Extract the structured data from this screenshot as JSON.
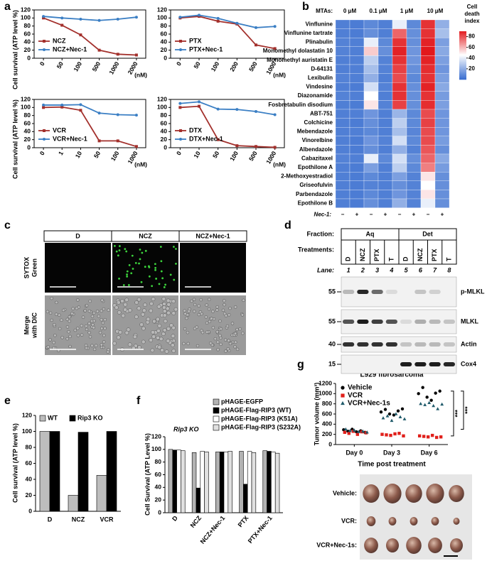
{
  "panel_labels": [
    "a",
    "b",
    "c",
    "d",
    "e",
    "f",
    "g"
  ],
  "chart_data": [
    {
      "type": "line",
      "categories": [
        "0",
        "50",
        "100",
        "500",
        "1000",
        "2000"
      ],
      "x_label": "(nM)",
      "y_label": "Cell survival (ATP level %)",
      "ylim": [
        0,
        120
      ],
      "yticks": [
        0,
        20,
        40,
        60,
        80,
        100,
        120
      ],
      "legend": "lower-left",
      "series": [
        {
          "name": "NCZ",
          "color": "#a3302c",
          "values": [
            100,
            82,
            58,
            20,
            10,
            8
          ]
        },
        {
          "name": "NCZ+Nec-1",
          "color": "#3b7fc4",
          "values": [
            104,
            100,
            97,
            94,
            97,
            102
          ]
        }
      ]
    },
    {
      "type": "line",
      "categories": [
        "0",
        "50",
        "100",
        "200",
        "500",
        "1000"
      ],
      "x_label": "(nM)",
      "ylim": [
        0,
        120
      ],
      "yticks": [
        0,
        20,
        40,
        60,
        80,
        100,
        120
      ],
      "legend": "lower-left",
      "series": [
        {
          "name": "PTX",
          "color": "#a3302c",
          "values": [
            100,
            104,
            92,
            85,
            33,
            24
          ]
        },
        {
          "name": "PTX+Nec-1",
          "color": "#3b7fc4",
          "values": [
            102,
            107,
            99,
            87,
            76,
            79
          ]
        }
      ]
    },
    {
      "type": "line",
      "categories": [
        "0",
        "1",
        "10",
        "50",
        "100",
        "1000"
      ],
      "x_label": "(nM)",
      "y_label": "Cell survival (ATP level %)",
      "ylim": [
        0,
        120
      ],
      "yticks": [
        0,
        20,
        40,
        60,
        80,
        100,
        120
      ],
      "legend": "lower-left",
      "series": [
        {
          "name": "VCR",
          "color": "#a3302c",
          "values": [
            100,
            101,
            93,
            17,
            17,
            3
          ]
        },
        {
          "name": "VCR+Nec-1",
          "color": "#3b7fc4",
          "values": [
            106,
            106,
            107,
            86,
            82,
            81
          ]
        }
      ]
    },
    {
      "type": "line",
      "categories": [
        "0",
        "10",
        "50",
        "100",
        "500",
        "1000"
      ],
      "x_label": "(nM)",
      "ylim": [
        0,
        120
      ],
      "yticks": [
        0,
        20,
        40,
        60,
        80,
        100,
        120
      ],
      "legend": "lower-left",
      "series": [
        {
          "name": "DTX",
          "color": "#a3302c",
          "values": [
            100,
            103,
            20,
            5,
            3,
            1
          ]
        },
        {
          "name": "DTX+Nec-1",
          "color": "#3b7fc4",
          "values": [
            110,
            114,
            96,
            95,
            90,
            82
          ]
        }
      ]
    },
    {
      "type": "bar",
      "categories": [
        "D",
        "NCZ",
        "VCR"
      ],
      "y_label": "Cell survival (ATP level %)",
      "ylim": [
        0,
        120
      ],
      "yticks": [
        0,
        20,
        40,
        60,
        80,
        100,
        120
      ],
      "legend": "top",
      "series": [
        {
          "name": "WT",
          "color": "#bdbdbd",
          "values": [
            100,
            20,
            45
          ]
        },
        {
          "name": "Rip3 KO",
          "color": "#000000",
          "values": [
            100,
            99,
            100
          ]
        }
      ]
    },
    {
      "type": "bar",
      "subtitle": "Rip3 KO",
      "categories": [
        "D",
        "NCZ",
        "NCZ+Nec-1",
        "PTX",
        "PTX+Nec-1"
      ],
      "y_label": "Cell Survival (ATP Level %)",
      "ylim": [
        0,
        120
      ],
      "yticks": [
        0,
        20,
        40,
        60,
        80,
        100,
        120
      ],
      "legend": "above",
      "series": [
        {
          "name": "pHAGE-EGFP",
          "color": "#b3b3b3",
          "values": [
            100,
            95,
            96,
            97,
            98
          ]
        },
        {
          "name": "pHAGE-Flag-RIP3 (WT)",
          "color": "#000000",
          "values": [
            99,
            39,
            96,
            45,
            97
          ]
        },
        {
          "name": "pHAGE-Flag-RIP3 (K51A)",
          "color": "#ffffff",
          "values": [
            99,
            97,
            96,
            97,
            96
          ]
        },
        {
          "name": "pHAGE-Flag-RIP3 (S232A)",
          "color": "#e0e0e0",
          "values": [
            98,
            96,
            97,
            95,
            94
          ]
        }
      ]
    },
    {
      "type": "scatter",
      "title": "L929 fibrosarcoma",
      "categories": [
        "Day 0",
        "Day 3",
        "Day 6"
      ],
      "y_label": "Tumor volume (mm³)",
      "x_label": "Time post treatment",
      "ylim": [
        0,
        1200
      ],
      "yticks": [
        0,
        200,
        400,
        600,
        800,
        1000,
        1200
      ],
      "legend": "upper-left",
      "annotations": [
        "***",
        "***"
      ],
      "series": [
        {
          "name": "Vehicle",
          "color": "#000000",
          "marker": "circle",
          "values": [
            [
              290,
              260,
              300,
              250,
              270,
              240
            ],
            [
              640,
              690,
              600,
              580,
              660,
              700
            ],
            [
              1000,
              1120,
              930,
              870,
              1010,
              1050
            ]
          ]
        },
        {
          "name": "VCR",
          "color": "#e0201b",
          "marker": "square",
          "values": [
            [
              240,
              220,
              260,
              200,
              250,
              230
            ],
            [
              200,
              190,
              180,
              210,
              220,
              170
            ],
            [
              170,
              160,
              150,
              180,
              140,
              150
            ]
          ]
        },
        {
          "name": "VCR+Nec-1s",
          "color": "#1f5a6a",
          "marker": "triangle",
          "values": [
            [
              300,
              270,
              280,
              250,
              260,
              240
            ],
            [
              520,
              560,
              470,
              600,
              540,
              500
            ],
            [
              800,
              780,
              820,
              760,
              700,
              790
            ]
          ]
        }
      ]
    }
  ],
  "heatmap": {
    "group_label": "MTAs:",
    "column_groups": [
      "0 μM",
      "0.1 μM",
      "1 μM",
      "10 μM"
    ],
    "factor_label": "Nec-1:",
    "factor_levels": [
      "−",
      "+"
    ],
    "colorbar_title": [
      "Cell",
      "death",
      "index"
    ],
    "clim": [
      0,
      90
    ],
    "colorbar_ticks": [
      20,
      40,
      60,
      80
    ],
    "colors": [
      "#3a6fd0",
      "#ffffff",
      "#e2181c"
    ],
    "rows": [
      "Vinflunine",
      "Vinflunine tartrate",
      "Plinabulin",
      "Monomethyl dolastatin 10",
      "Monomethyl auristatin E",
      "D-64131",
      "Lexibulin",
      "Vindesine",
      "Diazonamide",
      "Fosbretabulin disodium",
      "ABT-751",
      "Colchicine",
      "Mebendazole",
      "Vinorelbine",
      "Albendazole",
      "Cabazitaxel",
      "Epothilone A",
      "2-Methoxyestradiol",
      "Griseofulvin",
      "Parbendazole",
      "Epothilone B"
    ],
    "values": [
      [
        5,
        4,
        8,
        5,
        40,
        8,
        85,
        20
      ],
      [
        5,
        4,
        10,
        5,
        75,
        10,
        85,
        25
      ],
      [
        6,
        5,
        40,
        8,
        85,
        10,
        88,
        15
      ],
      [
        6,
        5,
        55,
        10,
        88,
        12,
        90,
        18
      ],
      [
        5,
        5,
        30,
        6,
        85,
        12,
        88,
        15
      ],
      [
        5,
        5,
        25,
        6,
        82,
        10,
        86,
        12
      ],
      [
        6,
        5,
        20,
        5,
        80,
        8,
        85,
        15
      ],
      [
        5,
        4,
        35,
        6,
        85,
        10,
        88,
        18
      ],
      [
        6,
        5,
        45,
        5,
        85,
        10,
        85,
        14
      ],
      [
        5,
        4,
        50,
        6,
        82,
        10,
        86,
        15
      ],
      [
        5,
        5,
        12,
        5,
        22,
        8,
        80,
        12
      ],
      [
        5,
        4,
        10,
        5,
        30,
        8,
        82,
        12
      ],
      [
        5,
        5,
        8,
        5,
        25,
        7,
        80,
        12
      ],
      [
        5,
        4,
        12,
        6,
        35,
        8,
        80,
        14
      ],
      [
        5,
        4,
        10,
        5,
        20,
        6,
        78,
        10
      ],
      [
        6,
        5,
        40,
        8,
        35,
        10,
        75,
        18
      ],
      [
        5,
        4,
        15,
        5,
        30,
        8,
        70,
        14
      ],
      [
        5,
        4,
        8,
        5,
        15,
        6,
        50,
        10
      ],
      [
        5,
        4,
        6,
        5,
        10,
        6,
        45,
        10
      ],
      [
        5,
        4,
        8,
        5,
        12,
        6,
        50,
        10
      ],
      [
        5,
        4,
        10,
        5,
        20,
        6,
        40,
        10
      ]
    ]
  },
  "microscopy": {
    "columns": [
      "D",
      "NCZ",
      "NCZ+Nec-1"
    ],
    "row_labels": [
      [
        "SYTOX",
        "Green"
      ],
      [
        "Merge",
        "with DIC"
      ]
    ]
  },
  "western_blot": {
    "fraction_label": "Fraction:",
    "fractions": [
      "Aq",
      "Det"
    ],
    "treatments_label": "Treatments:",
    "treatments": [
      "D",
      "NCZ",
      "PTX",
      "T",
      "D",
      "NCZ",
      "PTX",
      "T"
    ],
    "lane_label": "Lane:",
    "lanes": [
      1,
      2,
      3,
      4,
      5,
      6,
      7,
      8
    ],
    "blots": [
      {
        "name": "p-MLKL",
        "mw": 55
      },
      {
        "name": "MLKL",
        "mw": 55
      },
      {
        "name": "Actin",
        "mw": 40
      },
      {
        "name": "Cox4",
        "mw": 15
      }
    ]
  },
  "tumor_photo": {
    "labels": [
      "Vehicle:",
      "VCR:",
      "VCR+Nec-1s:"
    ]
  }
}
